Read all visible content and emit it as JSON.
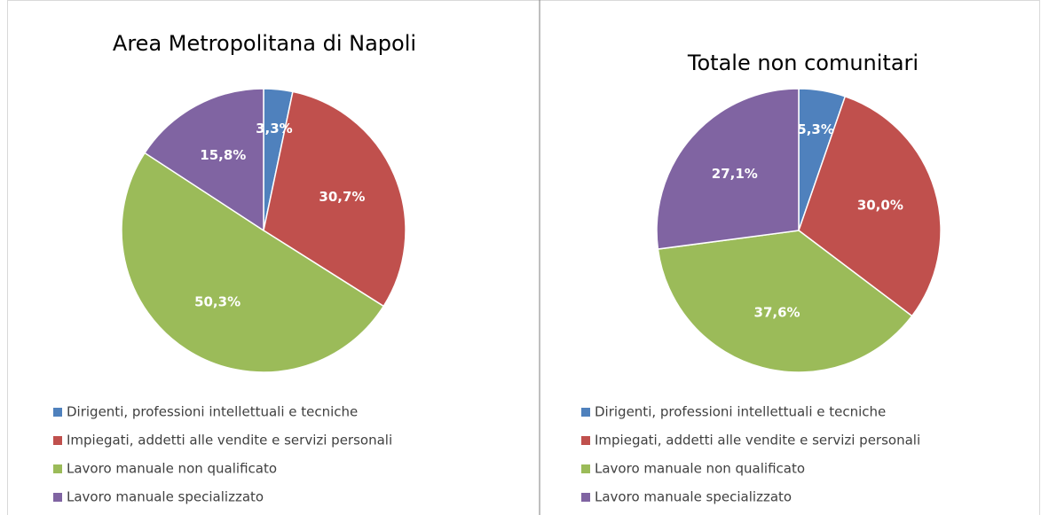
{
  "chart_data": [
    {
      "type": "pie",
      "title": "Area Metropolitana di Napoli",
      "categories": [
        "Dirigenti, professioni intellettuali e tecniche",
        "Impiegati, addetti alle vendite e servizi personali",
        "Lavoro manuale non qualificato",
        "Lavoro manuale specializzato"
      ],
      "values": [
        3.3,
        30.7,
        50.3,
        15.8
      ],
      "value_labels": [
        "3,3%",
        "30,7%",
        "50,3%",
        "15,8%"
      ],
      "colors": [
        "#4f81bd",
        "#c0504d",
        "#9bbb59",
        "#8064a2"
      ]
    },
    {
      "type": "pie",
      "title": "Totale non comunitari",
      "categories": [
        "Dirigenti, professioni intellettuali e tecniche",
        "Impiegati, addetti alle vendite e servizi personali",
        "Lavoro manuale non qualificato",
        "Lavoro manuale specializzato"
      ],
      "values": [
        5.3,
        30.0,
        37.6,
        27.1
      ],
      "value_labels": [
        "5,3%",
        "30,0%",
        "37,6%",
        "27,1%"
      ],
      "colors": [
        "#4f81bd",
        "#c0504d",
        "#9bbb59",
        "#8064a2"
      ]
    }
  ]
}
